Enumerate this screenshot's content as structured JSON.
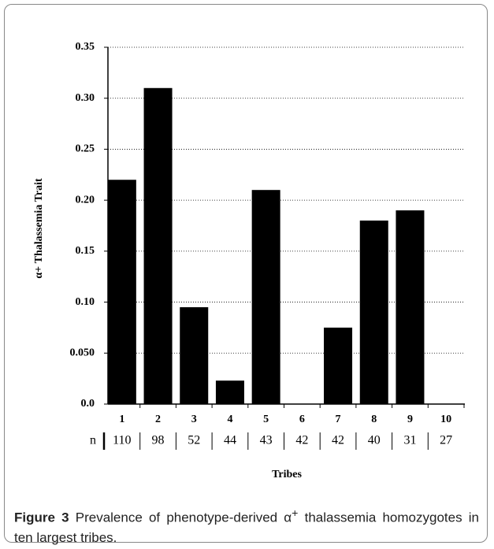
{
  "chart_data": {
    "type": "bar",
    "y_label": "α+ Thalassemia Trait",
    "x_label": "Tribes",
    "categories": [
      "1",
      "2",
      "3",
      "4",
      "5",
      "6",
      "7",
      "8",
      "9",
      "10"
    ],
    "values": [
      0.22,
      0.31,
      0.095,
      0.023,
      0.21,
      0,
      0.075,
      0.18,
      0.19,
      0
    ],
    "color": "#000000",
    "n_label": "n",
    "n_values": [
      110,
      98,
      52,
      44,
      43,
      42,
      42,
      40,
      31,
      27
    ],
    "ylim": [
      0,
      0.35
    ],
    "yticks": [
      {
        "value": 0,
        "label": "0.0"
      },
      {
        "value": 0.05,
        "label": "0.050"
      },
      {
        "value": 0.1,
        "label": "0.10"
      },
      0.15,
      {
        "value": 0.2,
        "label": "0.20"
      },
      0.25,
      {
        "value": 0.3,
        "label": "0.30"
      },
      0.35
    ],
    "grid": true
  },
  "caption": {
    "label": "Figure 3",
    "text_before": "Prevalence of phenotype-derived α",
    "superscript": "+",
    "text_after": " thalassemia homozygotes in ten largest tribes."
  }
}
